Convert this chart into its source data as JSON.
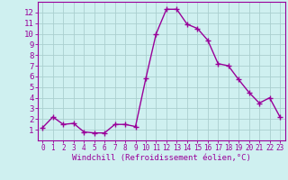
{
  "x": [
    0,
    1,
    2,
    3,
    4,
    5,
    6,
    7,
    8,
    9,
    10,
    11,
    12,
    13,
    14,
    15,
    16,
    17,
    18,
    19,
    20,
    21,
    22,
    23
  ],
  "y": [
    1.2,
    2.2,
    1.5,
    1.6,
    0.8,
    0.7,
    0.7,
    1.5,
    1.5,
    1.3,
    5.8,
    10.0,
    12.3,
    12.3,
    10.9,
    10.5,
    9.4,
    7.2,
    7.0,
    5.7,
    4.5,
    3.5,
    4.0,
    2.2
  ],
  "line_color": "#990099",
  "marker": "+",
  "marker_size": 4,
  "xlabel": "Windchill (Refroidissement éolien,°C)",
  "xlim": [
    -0.5,
    23.5
  ],
  "ylim": [
    0,
    13
  ],
  "xticks": [
    0,
    1,
    2,
    3,
    4,
    5,
    6,
    7,
    8,
    9,
    10,
    11,
    12,
    13,
    14,
    15,
    16,
    17,
    18,
    19,
    20,
    21,
    22,
    23
  ],
  "yticks": [
    1,
    2,
    3,
    4,
    5,
    6,
    7,
    8,
    9,
    10,
    11,
    12
  ],
  "bg_color": "#cff0f0",
  "grid_color": "#aacfcf",
  "line_width": 1.0,
  "tick_color": "#990099",
  "xlabel_fontsize": 6.5,
  "ytick_fontsize": 6.5,
  "xtick_fontsize": 5.5
}
